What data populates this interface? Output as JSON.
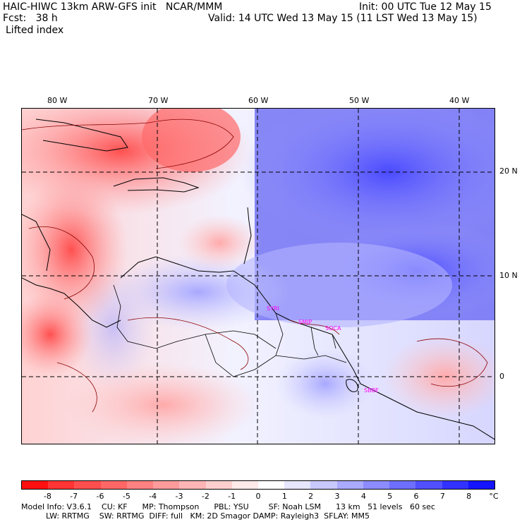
{
  "header": {
    "line1_left": "HAIC-HIWC 13km ARW-GFS init   NCAR/MMM",
    "line1_right": "Init: 00 UTC Tue 12 May 15",
    "line2_left": "Fcst:   38 h",
    "line2_right": "Valid: 14 UTC Wed 13 May 15 (11 LST Wed 13 May 15)",
    "line3_left": "Lifted index"
  },
  "map": {
    "longitude_labels": [
      "80 W",
      "70 W",
      "60 W",
      "50 W",
      "40 W"
    ],
    "latitude_labels": [
      "20 N",
      "10 N",
      "0"
    ],
    "stations": [
      "SYRI",
      "SMJP",
      "SOCA",
      "SBBE"
    ]
  },
  "colorbar": {
    "labels": [
      "-8",
      "-7",
      "-6",
      "-5",
      "-4",
      "-3",
      "-2",
      "-1",
      "0",
      "1",
      "2",
      "3",
      "4",
      "5",
      "6",
      "7",
      "8"
    ],
    "unit": "°C",
    "colors": [
      "#ff1010",
      "#ff3434",
      "#ff4e4e",
      "#ff6767",
      "#ff8181",
      "#ff9b9b",
      "#ffb5b5",
      "#ffcfcf",
      "#ffe9e9",
      "#ffffff",
      "#e6e6ff",
      "#c8c8ff",
      "#aaaaff",
      "#8c8cff",
      "#6e6eff",
      "#5050ff",
      "#3232ff",
      "#1414ff"
    ]
  },
  "footer": {
    "line1": "Model Info: V3.6.1    CU: KF      MP: Thompson      PBL: YSU        SF: Noah LSM      13 km   51 levels   60 sec",
    "line2": "          LW: RRTMG    SW: RRTMG  DIFF: full   KM: 2D Smagor DAMP: Rayleigh3  SFLAY: MM5"
  }
}
